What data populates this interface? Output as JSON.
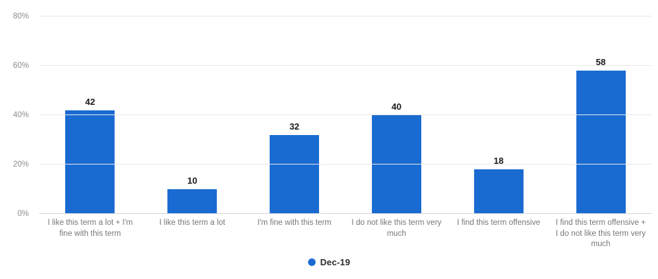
{
  "chart_data": {
    "type": "bar",
    "categories": [
      "I like this term a lot + I'm fine with this term",
      "I like this term a lot",
      "I'm fine with this term",
      "I do not like this term very much",
      "I find this term offensive",
      "I find this term offensive + I do not like this term very much"
    ],
    "series": [
      {
        "name": "Dec-19",
        "values": [
          42,
          10,
          32,
          40,
          18,
          58
        ]
      }
    ],
    "title": "",
    "xlabel": "",
    "ylabel": "",
    "ylim": [
      0,
      80
    ],
    "yticks": [
      {
        "value": 0,
        "label": "0%"
      },
      {
        "value": 20,
        "label": "20%"
      },
      {
        "value": 40,
        "label": "40%"
      },
      {
        "value": 60,
        "label": "60%"
      },
      {
        "value": 80,
        "label": "80%"
      }
    ],
    "grid": true,
    "legend_position": "bottom-center",
    "colors": {
      "bar": "#1a6bd1",
      "gridline": "#e7e7ea",
      "baseline": "#d4d4da",
      "value_label": "#1a1a1a",
      "axis_label": "#8c8c92",
      "category_label": "#77777d",
      "background": "#ffffff"
    }
  },
  "legend": {
    "label": "Dec-19"
  }
}
